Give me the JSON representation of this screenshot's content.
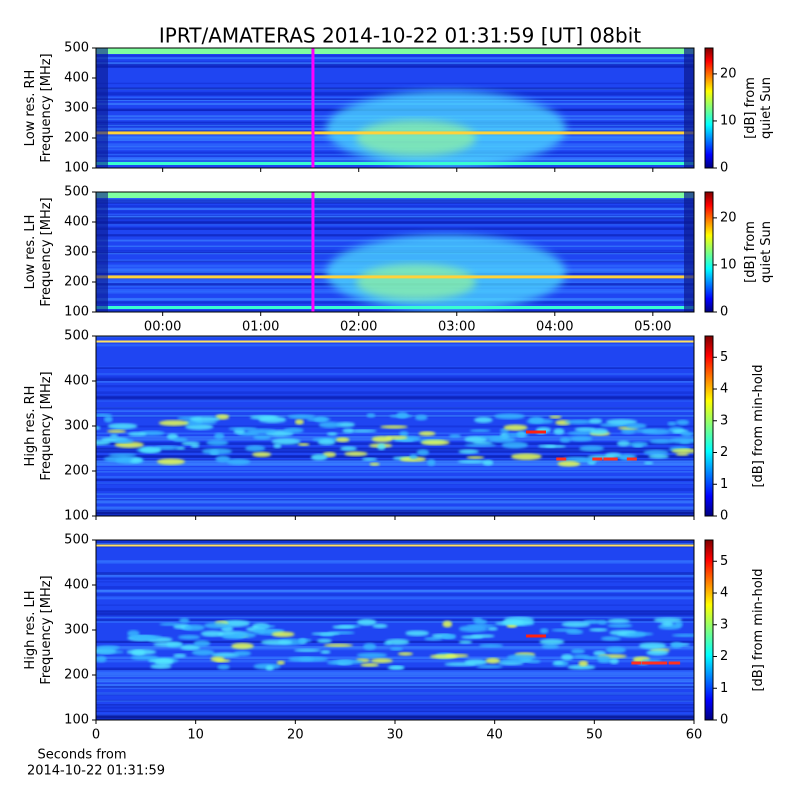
{
  "title": "IPRT/AMATERAS 2014-10-22 01:31:59 [UT]   08bit",
  "x_label": [
    "Seconds from",
    "2014-10-22 01:31:59"
  ],
  "chart_data": [
    {
      "type": "spectrogram",
      "y_label": [
        "Low res. RH",
        "Frequency [MHz]"
      ],
      "xlim": [
        -0.68,
        5.42
      ],
      "ylim": [
        100,
        500
      ],
      "yticks": [
        100,
        200,
        300,
        400,
        500
      ],
      "marker_x": 1.5331,
      "marker_color": "#ff00ff",
      "colorbar_label": [
        "[dB] from",
        "quiet Sun"
      ],
      "colorbar_lim": [
        0,
        25.5
      ],
      "colorbar_ticks": [
        0,
        10,
        20
      ]
    },
    {
      "type": "spectrogram",
      "y_label": [
        "Low res. LH",
        "Frequency [MHz]"
      ],
      "xlim": [
        -0.68,
        5.42
      ],
      "ylim": [
        100,
        500
      ],
      "yticks": [
        100,
        200,
        300,
        400,
        500
      ],
      "xticks": [
        {
          "value": 0,
          "label": "00:00"
        },
        {
          "value": 1,
          "label": "01:00"
        },
        {
          "value": 2,
          "label": "02:00"
        },
        {
          "value": 3,
          "label": "03:00"
        },
        {
          "value": 4,
          "label": "04:00"
        },
        {
          "value": 5,
          "label": "05:00"
        }
      ],
      "marker_x": 1.5331,
      "marker_color": "#ff00ff",
      "colorbar_label": [
        "[dB] from",
        "quiet Sun"
      ],
      "colorbar_lim": [
        0,
        25.5
      ],
      "colorbar_ticks": [
        0,
        10,
        20
      ]
    },
    {
      "type": "spectrogram",
      "y_label": [
        "High res. RH",
        "Frequency [MHz]"
      ],
      "xlim": [
        0,
        60
      ],
      "ylim": [
        100,
        500
      ],
      "yticks": [
        100,
        200,
        300,
        400,
        500
      ],
      "colorbar_label": [
        "[dB] from min-hold"
      ],
      "colorbar_lim": [
        0,
        5.67
      ],
      "colorbar_ticks": [
        0,
        1,
        2,
        3,
        4,
        5
      ]
    },
    {
      "type": "spectrogram",
      "y_label": [
        "High res. LH",
        "Frequency [MHz]"
      ],
      "xlim": [
        0,
        60
      ],
      "ylim": [
        100,
        500
      ],
      "yticks": [
        100,
        200,
        300,
        400,
        500
      ],
      "xticks": [
        0,
        10,
        20,
        30,
        40,
        50,
        60
      ],
      "colorbar_label": [
        "[dB] from min-hold"
      ],
      "colorbar_lim": [
        0,
        5.67
      ],
      "colorbar_ticks": [
        0,
        1,
        2,
        3,
        4,
        5
      ]
    }
  ]
}
